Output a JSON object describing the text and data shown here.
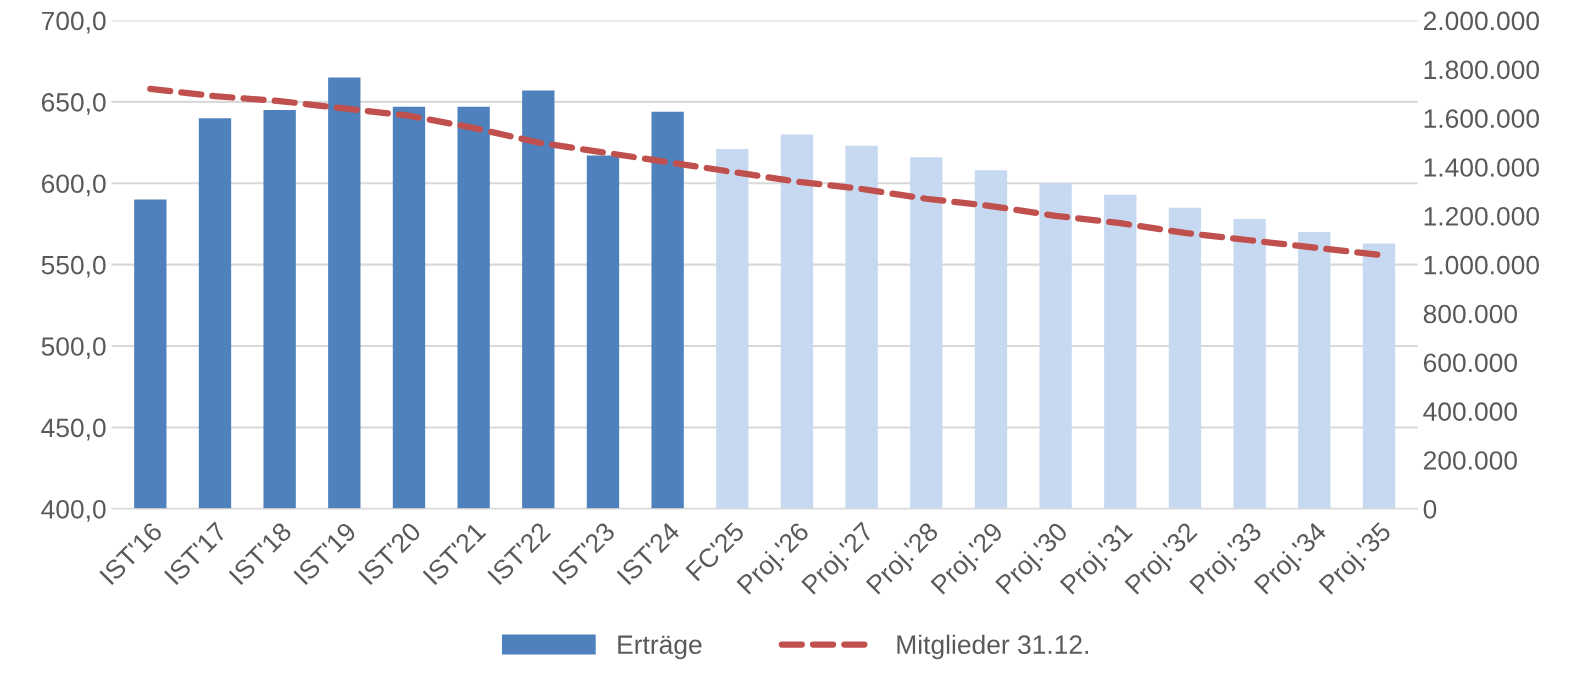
{
  "chart_data": {
    "type": "bar",
    "categories": [
      "IST'16",
      "IST'17",
      "IST'18",
      "IST'19",
      "IST'20",
      "IST'21",
      "IST'22",
      "IST'23",
      "IST'24",
      "FC'25",
      "Proj.'26",
      "Proj.'27",
      "Proj.'28",
      "Proj.'29",
      "Proj.'30",
      "Proj.'31",
      "Proj.'32",
      "Proj.'33",
      "Proj.'34",
      "Proj.'35"
    ],
    "series": [
      {
        "name": "Erträge",
        "color": "#4f81bd",
        "colors": [
          "#4f81bd",
          "#4f81bd",
          "#4f81bd",
          "#4f81bd",
          "#4f81bd",
          "#4f81bd",
          "#4f81bd",
          "#4f81bd",
          "#4f81bd",
          "#c6d9f0",
          "#c6d9f0",
          "#c6d9f0",
          "#c6d9f0",
          "#c6d9f0",
          "#c6d9f0",
          "#c6d9f0",
          "#c6d9f0",
          "#c6d9f0",
          "#c6d9f0",
          "#c6d9f0"
        ],
        "values": [
          590,
          640,
          645,
          665,
          647,
          647,
          657,
          617,
          644,
          621,
          630,
          623,
          616,
          608,
          600,
          593,
          585,
          578,
          570,
          563
        ]
      },
      {
        "name": "Mitglieder 31.12.",
        "type": "line",
        "axis": "y2",
        "color": "#c0504d",
        "line_style": "dashed",
        "values": [
          1720000,
          1690000,
          1670000,
          1640000,
          1610000,
          1560000,
          1500000,
          1460000,
          1420000,
          1380000,
          1340000,
          1310000,
          1270000,
          1240000,
          1200000,
          1170000,
          1130000,
          1100000,
          1070000,
          1040000
        ]
      }
    ],
    "ylim": [
      400,
      700
    ],
    "yticks": [
      {
        "value": 400,
        "label": "400,0"
      },
      {
        "value": 450,
        "label": "450,0"
      },
      {
        "value": 500,
        "label": "500,0"
      },
      {
        "value": 550,
        "label": "550,0"
      },
      {
        "value": 600,
        "label": "600,0"
      },
      {
        "value": 650,
        "label": "650,0"
      },
      {
        "value": 700,
        "label": "700,0"
      }
    ],
    "y2lim": [
      0,
      2000000
    ],
    "y2ticks": [
      0,
      {
        "value": 200000,
        "label": "200.000"
      },
      {
        "value": 400000,
        "label": "400.000"
      },
      {
        "value": 600000,
        "label": "600.000"
      },
      {
        "value": 800000,
        "label": "800.000"
      },
      {
        "value": 1000000,
        "label": "1.000.000"
      },
      {
        "value": 1200000,
        "label": "1.200.000"
      },
      {
        "value": 1400000,
        "label": "1.400.000"
      },
      {
        "value": 1600000,
        "label": "1.600.000"
      },
      {
        "value": 1800000,
        "label": "1.800.000"
      },
      {
        "value": 2000000,
        "label": "2.000.000"
      }
    ],
    "grid": "y",
    "legend": "bottom"
  }
}
